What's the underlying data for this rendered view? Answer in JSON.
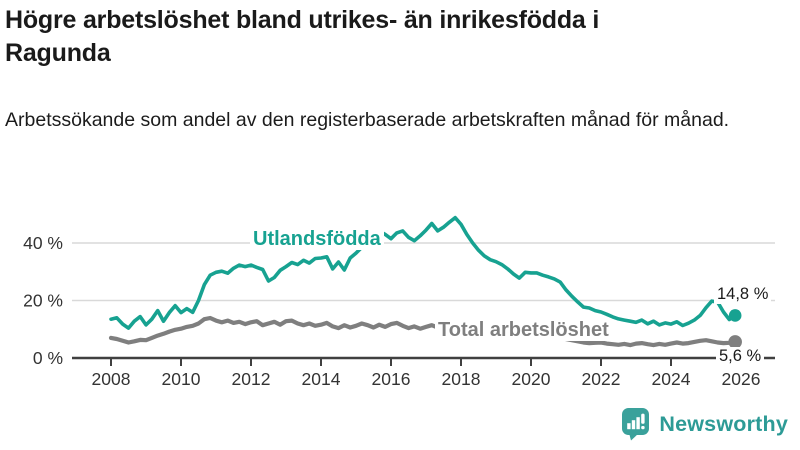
{
  "header": {
    "title": "Högre arbetslöshet bland utrikes- än inrikesfödda i Ragunda",
    "subtitle": "Arbetssökande som andel av den registerbaserade arbetskraften månad för månad."
  },
  "chart_data": {
    "type": "line",
    "title": "Högre arbetslöshet bland utrikes- än inrikesfödda i Ragunda",
    "subtitle": "Arbetssökande som andel av den registerbaserade arbetskraften månad för månad.",
    "unit": "%",
    "x_start": 2008.0,
    "x_step_years": 0.166667,
    "xlim": [
      2006.9,
      2027.0
    ],
    "ylim": [
      0,
      52
    ],
    "grid": "horizontal",
    "x_ticks": [
      "2008",
      "2010",
      "2012",
      "2014",
      "2016",
      "2018",
      "2020",
      "2022",
      "2024",
      "2026"
    ],
    "y_ticks": [
      {
        "value": 0,
        "label": "0 %"
      },
      {
        "value": 20,
        "label": "20 %"
      },
      {
        "value": 40,
        "label": "40 %"
      }
    ],
    "series": [
      {
        "name": "Utlandsfödda",
        "color": "#17a291",
        "end_label": "14,8 %",
        "end_value": 14.8,
        "values": [
          13.5,
          14.0,
          11.8,
          10.4,
          12.8,
          14.4,
          11.5,
          13.5,
          16.5,
          12.8,
          15.8,
          18.2,
          15.8,
          17.2,
          15.9,
          20.0,
          25.5,
          28.8,
          29.8,
          30.2,
          29.5,
          31.2,
          32.3,
          31.8,
          32.3,
          31.5,
          30.8,
          26.8,
          28.0,
          30.5,
          31.8,
          33.2,
          32.5,
          34.0,
          33.0,
          34.6,
          34.8,
          35.2,
          31.0,
          33.4,
          30.6,
          34.8,
          36.5,
          38.5,
          40.5,
          42.5,
          44.2,
          43.0,
          41.5,
          43.5,
          44.2,
          42.0,
          40.8,
          42.5,
          44.5,
          46.8,
          44.2,
          45.5,
          47.2,
          48.8,
          46.5,
          43.0,
          40.0,
          37.5,
          35.5,
          34.2,
          33.5,
          32.5,
          31.0,
          29.2,
          27.8,
          29.8,
          29.6,
          29.6,
          28.8,
          28.2,
          27.5,
          26.4,
          23.7,
          21.5,
          19.5,
          17.7,
          17.4,
          16.5,
          16.0,
          15.2,
          14.3,
          13.6,
          13.2,
          12.8,
          12.4,
          13.2,
          11.9,
          12.8,
          11.5,
          12.2,
          11.8,
          12.6,
          11.3,
          12.1,
          13.2,
          14.8,
          17.5,
          19.8,
          19.4,
          16.0,
          13.4,
          14.8
        ]
      },
      {
        "name": "Total arbetslöshet",
        "color": "#7f7f7f",
        "end_label": "5,6 %",
        "end_value": 5.6,
        "values": [
          7.0,
          6.6,
          6.0,
          5.4,
          5.8,
          6.3,
          6.2,
          7.0,
          7.8,
          8.4,
          9.2,
          9.8,
          10.2,
          10.8,
          11.2,
          12.0,
          13.5,
          13.9,
          13.0,
          12.4,
          13.0,
          12.2,
          12.6,
          11.8,
          12.4,
          12.8,
          11.4,
          12.0,
          12.6,
          11.6,
          12.8,
          13.0,
          12.0,
          11.4,
          12.0,
          11.2,
          11.6,
          12.2,
          11.0,
          10.4,
          11.4,
          10.6,
          11.2,
          12.0,
          11.4,
          10.6,
          11.6,
          10.8,
          11.8,
          12.2,
          11.2,
          10.4,
          11.0,
          10.2,
          10.8,
          11.4,
          10.6,
          10.0,
          10.8,
          10.2,
          9.8,
          9.2,
          8.8,
          8.4,
          8.8,
          8.2,
          8.4,
          8.0,
          7.8,
          7.4,
          7.8,
          7.4,
          7.8,
          8.4,
          8.8,
          8.2,
          7.6,
          7.0,
          6.6,
          6.2,
          5.8,
          5.4,
          5.2,
          5.3,
          5.4,
          5.0,
          4.8,
          4.6,
          4.9,
          4.5,
          5.0,
          5.2,
          4.8,
          4.5,
          4.9,
          4.6,
          5.0,
          5.4,
          5.0,
          5.2,
          5.6,
          6.0,
          6.2,
          5.8,
          5.4,
          5.2,
          5.3,
          5.6
        ]
      }
    ]
  },
  "footer": {
    "brand": "Newsworthy",
    "brand_color": "#2d9b96",
    "logo_icon": "bar-chart-speech-bubble"
  },
  "colors": {
    "accent_teal": "#17a291",
    "series_gray": "#7f7f7f",
    "axis": "#404040",
    "gridline": "#d9d9d9",
    "tick_text": "#333333",
    "text": "#1a1a1a"
  }
}
